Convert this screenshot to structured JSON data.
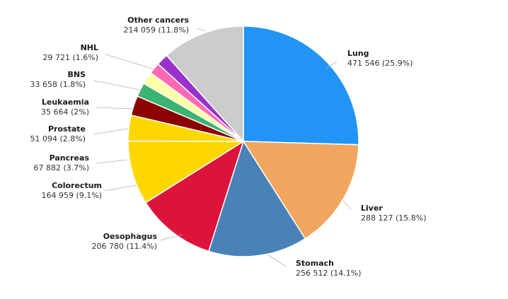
{
  "chart_data": {
    "type": "pie",
    "title": "",
    "slices": [
      {
        "label": "Lung",
        "value": 471546,
        "value_text": "471 546 (25.9%)",
        "percent": 25.9,
        "color": "#2294F5"
      },
      {
        "label": "Liver",
        "value": 288127,
        "value_text": "288 127 (15.8%)",
        "percent": 15.8,
        "color": "#F0A65E"
      },
      {
        "label": "Stomach",
        "value": 256512,
        "value_text": "256 512 (14.1%)",
        "percent": 14.1,
        "color": "#4A82B8"
      },
      {
        "label": "Oesophagus",
        "value": 206780,
        "value_text": "206 780 (11.4%)",
        "percent": 11.4,
        "color": "#DC143C"
      },
      {
        "label": "Colorectum",
        "value": 164959,
        "value_text": "164 959 (9.1%)",
        "percent": 9.1,
        "color": "#FFD700"
      },
      {
        "label": "Pancreas",
        "value": 67882,
        "value_text": "67 882 (3.7%)",
        "percent": 3.7,
        "color": "#FFD700"
      },
      {
        "label": "Prostate",
        "value": 51094,
        "value_text": "51 094 (2.8%)",
        "percent": 2.8,
        "color": "#8B0000"
      },
      {
        "label": "Leukaemia",
        "value": 35664,
        "value_text": "35 664 (2%)",
        "percent": 2.0,
        "color": "#3CB371"
      },
      {
        "label": "BNS",
        "value": 33658,
        "value_text": "33 658 (1.8%)",
        "percent": 1.8,
        "color": "#FFFFAA"
      },
      {
        "label": "NHL",
        "value": 29721,
        "value_text": "29 721 (1.6%)",
        "percent": 1.6,
        "color": "#FF69B4"
      },
      {
        "label": "Other cancers",
        "value": 214059,
        "value_text": "214 059 (11.8%)",
        "percent": 11.8,
        "color": "#CCCCCC"
      }
    ],
    "extra_slices": [
      {
        "color": "#9932CC"
      }
    ],
    "start_angle": "12 o'clock",
    "direction": "clockwise",
    "legend": "none",
    "data_labels": "outside"
  }
}
